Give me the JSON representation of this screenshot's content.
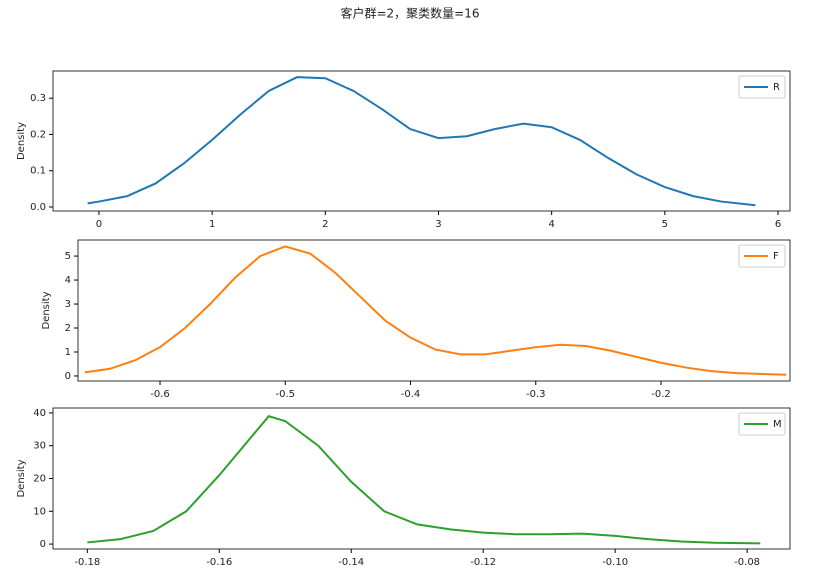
{
  "title": "客户群=2，聚类数量=16",
  "chart_data": [
    {
      "type": "line",
      "ylabel": "Density",
      "legend": "upper right",
      "xlim": [
        -0.406,
        6.106
      ],
      "xticks": [
        0,
        1,
        2,
        3,
        4,
        5,
        6
      ],
      "ylim": [
        -0.011,
        0.375
      ],
      "yticks": [
        {
          "value": 0,
          "label": "0.0"
        },
        0.1,
        0.2,
        0.3
      ],
      "x": [
        -0.1,
        0,
        0.25,
        0.5,
        0.75,
        1,
        1.25,
        1.5,
        1.75,
        2,
        2.25,
        2.5,
        2.75,
        3,
        3.25,
        3.5,
        3.75,
        4,
        4.25,
        4.5,
        4.75,
        5,
        5.25,
        5.5,
        5.8
      ],
      "series": [
        {
          "name": "R",
          "color": "#1f77b4",
          "values": [
            0.01,
            0.015,
            0.03,
            0.065,
            0.12,
            0.185,
            0.255,
            0.32,
            0.358,
            0.355,
            0.32,
            0.27,
            0.215,
            0.19,
            0.195,
            0.215,
            0.23,
            0.22,
            0.185,
            0.135,
            0.09,
            0.055,
            0.03,
            0.015,
            0.005
          ]
        }
      ]
    },
    {
      "type": "line",
      "ylabel": "Density",
      "legend": "upper right",
      "xlim": [
        -0.6655,
        -0.097
      ],
      "xticks": [
        -0.6,
        -0.5,
        -0.4,
        -0.3,
        -0.2
      ],
      "ylim": [
        -0.21,
        5.67
      ],
      "yticks": [
        0,
        1,
        2,
        3,
        4,
        5
      ],
      "x": [
        -0.66,
        -0.64,
        -0.62,
        -0.6,
        -0.58,
        -0.56,
        -0.54,
        -0.52,
        -0.5,
        -0.48,
        -0.46,
        -0.44,
        -0.42,
        -0.4,
        -0.38,
        -0.36,
        -0.34,
        -0.32,
        -0.3,
        -0.28,
        -0.26,
        -0.24,
        -0.22,
        -0.2,
        -0.18,
        -0.16,
        -0.14,
        -0.1
      ],
      "series": [
        {
          "name": "F",
          "color": "#ff7f0e",
          "values": [
            0.15,
            0.3,
            0.65,
            1.2,
            2.0,
            3.0,
            4.1,
            5.0,
            5.4,
            5.1,
            4.3,
            3.3,
            2.3,
            1.6,
            1.1,
            0.9,
            0.9,
            1.05,
            1.2,
            1.3,
            1.25,
            1.05,
            0.8,
            0.55,
            0.35,
            0.2,
            0.12,
            0.05
          ]
        }
      ]
    },
    {
      "type": "line",
      "ylabel": "Density",
      "legend": "upper right",
      "xlim": [
        -0.1852,
        -0.0735
      ],
      "xticks": [
        -0.18,
        -0.16,
        -0.14,
        -0.12,
        {
          "value": -0.1,
          "label": "-0.10"
        },
        -0.08
      ],
      "ylim": [
        -1.5,
        41.5
      ],
      "yticks": [
        0,
        10,
        20,
        30,
        40
      ],
      "x": [
        -0.18,
        -0.175,
        -0.17,
        -0.165,
        -0.16,
        -0.155,
        -0.1525,
        -0.15,
        -0.145,
        -0.14,
        -0.135,
        -0.13,
        -0.125,
        -0.12,
        -0.115,
        -0.11,
        -0.105,
        -0.1,
        -0.095,
        -0.09,
        -0.085,
        -0.078
      ],
      "series": [
        {
          "name": "M",
          "color": "#2ca02c",
          "values": [
            0.5,
            1.5,
            4,
            10,
            21,
            33,
            39,
            37.5,
            30,
            19,
            10,
            6,
            4.5,
            3.5,
            3,
            3,
            3.2,
            2.5,
            1.5,
            0.8,
            0.4,
            0.2
          ]
        }
      ]
    }
  ]
}
